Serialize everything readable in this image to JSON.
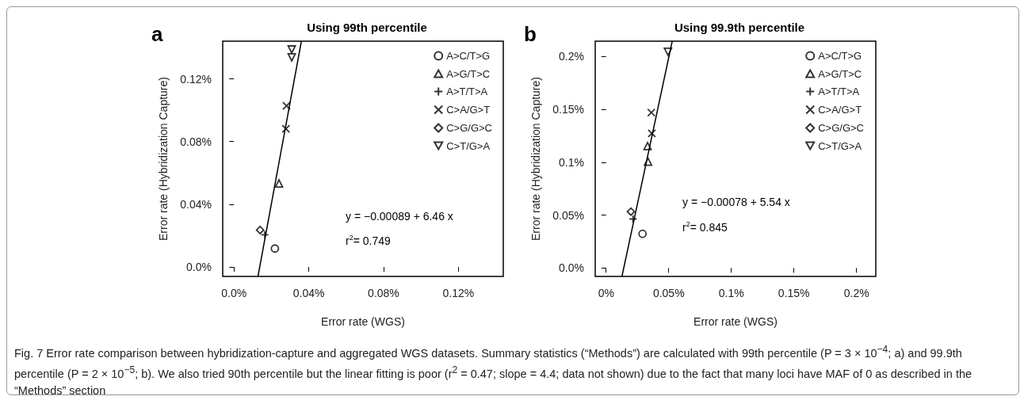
{
  "chart_data": [
    {
      "type": "scatter",
      "title": "Using 99th percentile",
      "xlabel": "Error rate (WGS)",
      "ylabel": "Error rate (Hybridization Capture)",
      "legend": "top right",
      "grid": false,
      "xlim": [
        -0.006,
        0.144
      ],
      "xticks": [
        {
          "value": 0,
          "label": "0.0%"
        },
        {
          "value": 0.04,
          "label": "0.04%"
        },
        {
          "value": 0.08,
          "label": "0.08%"
        },
        {
          "value": 0.12,
          "label": "0.12%"
        }
      ],
      "ylim": [
        -0.006,
        0.144
      ],
      "yticks": [
        {
          "value": 0,
          "label": "0.0%"
        },
        {
          "value": 0.04,
          "label": "0.04%"
        },
        {
          "value": 0.08,
          "label": "0.08%"
        },
        {
          "value": 0.12,
          "label": "0.12%"
        }
      ],
      "annotations": [
        "a",
        "y = −0.00089 + 6.46 x",
        "r$^{2}$= 0.749",
        "Fig. 7 Error rate comparison between hybridization-capture and aggregated WGS datasets. Summary statistics (“Methods”) are calculated with 99th percentile (P = 3 × 10$^{−4}$; a) and 99.9th percentile (P = 2 × 10$^{−5}$; b). We also tried 90th percentile but the linear fitting is poor (r$^{2}$ = 0.47; slope = 4.4; data not shown) due to the fact that many loci have MAF of 0 as described in the “Methods” section"
      ],
      "series": [
        {
          "name": "A>C/T>G",
          "color": "#000000",
          "marker": "circle",
          "x": [
            0.0219
          ],
          "values": [
            0.0118
          ]
        },
        {
          "name": "A>G/T>C",
          "color": "#000000",
          "marker": "triangle",
          "x": [
            0.0241
          ],
          "values": [
            0.0533
          ]
        },
        {
          "name": "A>T/T>A",
          "color": "#000000",
          "marker": "plus",
          "x": [
            0.0165
          ],
          "values": [
            0.0206
          ]
        },
        {
          "name": "C>A/G>T",
          "color": "#000000",
          "marker": "x",
          "x": [
            0.0281,
            0.0278
          ],
          "values": [
            0.1028,
            0.0881
          ]
        },
        {
          "name": "C>G/G>C",
          "color": "#000000",
          "marker": "diamond",
          "x": [
            0.014
          ],
          "values": [
            0.0236
          ]
        },
        {
          "name": "C>T/G>A",
          "color": "#000000",
          "marker": "triangle-down",
          "x": [
            0.0309,
            0.0309
          ],
          "values": [
            0.1387,
            0.1337
          ]
        },
        {
          "type": "line",
          "color": "#000000",
          "marker": "none",
          "x": [
            0.01285,
            0.03607
          ],
          "values": [
            -0.006,
            0.144
          ]
        }
      ]
    },
    {
      "type": "scatter",
      "title": "Using 99.9th percentile",
      "xlabel": "Error rate (WGS)",
      "ylabel": "Error rate (Hybridization Capture)",
      "legend": "top right",
      "grid": false,
      "xlim": [
        -0.0087,
        0.2154
      ],
      "xticks": [
        {
          "value": 0,
          "label": "0%"
        },
        {
          "value": 0.05,
          "label": "0.05%"
        },
        {
          "value": 0.1,
          "label": "0.1%"
        },
        {
          "value": 0.15,
          "label": "0.15%"
        },
        {
          "value": 0.2,
          "label": "0.2%"
        }
      ],
      "ylim": [
        -0.008,
        0.2145
      ],
      "yticks": [
        {
          "value": 0,
          "label": "0.0%"
        },
        {
          "value": 0.05,
          "label": "0.05%"
        },
        {
          "value": 0.1,
          "label": "0.1%"
        },
        {
          "value": 0.15,
          "label": "0.15%"
        },
        {
          "value": 0.2,
          "label": "0.2%"
        }
      ],
      "annotations": [
        "b",
        "y = −0.00078 + 5.54 x",
        "r$^{2}$= 0.845"
      ],
      "series": [
        {
          "name": "A>C/T>G",
          "color": "#000000",
          "marker": "circle",
          "x": [
            0.0291
          ],
          "values": [
            0.0323
          ]
        },
        {
          "name": "A>G/T>C",
          "color": "#000000",
          "marker": "triangle",
          "x": [
            0.0331,
            0.0335
          ],
          "values": [
            0.1153,
            0.1005
          ]
        },
        {
          "name": "A>T/T>A",
          "color": "#000000",
          "marker": "plus",
          "x": [
            0.0215
          ],
          "values": [
            0.0463
          ]
        },
        {
          "name": "C>A/G>T",
          "color": "#000000",
          "marker": "x",
          "x": [
            0.0361,
            0.0365
          ],
          "values": [
            0.147,
            0.1273
          ]
        },
        {
          "name": "C>G/G>C",
          "color": "#000000",
          "marker": "diamond",
          "x": [
            0.0198
          ],
          "values": [
            0.0533
          ]
        },
        {
          "name": "C>T/G>A",
          "color": "#000000",
          "marker": "triangle-down",
          "x": [
            0.0494
          ],
          "values": [
            0.2045
          ]
        },
        {
          "type": "line",
          "color": "#000000",
          "marker": "none",
          "x": [
            0.01264,
            0.0528
          ],
          "values": [
            -0.008,
            0.2145
          ]
        }
      ]
    }
  ]
}
